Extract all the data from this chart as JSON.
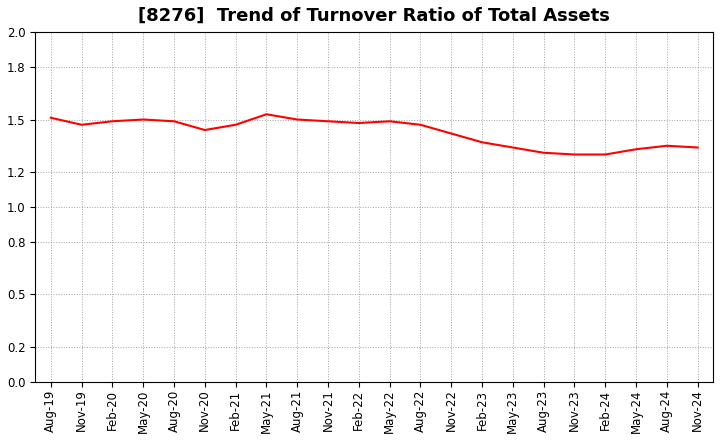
{
  "title": "[8276]  Trend of Turnover Ratio of Total Assets",
  "line_color": "#FF0000",
  "line_width": 1.5,
  "background_color": "#FFFFFF",
  "plot_bg_color": "#FFFFFF",
  "grid_color": "#999999",
  "ylim": [
    0.0,
    2.0
  ],
  "yticks": [
    0.0,
    0.2,
    0.5,
    0.8,
    1.0,
    1.2,
    1.5,
    1.8,
    2.0
  ],
  "x_labels": [
    "Aug-19",
    "Nov-19",
    "Feb-20",
    "May-20",
    "Aug-20",
    "Nov-20",
    "Feb-21",
    "May-21",
    "Aug-21",
    "Nov-21",
    "Feb-22",
    "May-22",
    "Aug-22",
    "Nov-22",
    "Feb-23",
    "May-23",
    "Aug-23",
    "Nov-23",
    "Feb-24",
    "May-24",
    "Aug-24",
    "Nov-24"
  ],
  "x_values": [
    0,
    1,
    2,
    3,
    4,
    5,
    6,
    7,
    8,
    9,
    10,
    11,
    12,
    13,
    14,
    15,
    16,
    17,
    18,
    19,
    20,
    21
  ],
  "y_values": [
    1.51,
    1.47,
    1.49,
    1.5,
    1.49,
    1.44,
    1.47,
    1.53,
    1.5,
    1.49,
    1.48,
    1.49,
    1.47,
    1.42,
    1.37,
    1.34,
    1.31,
    1.3,
    1.3,
    1.33,
    1.35,
    1.34
  ],
  "title_fontsize": 13,
  "tick_fontsize": 8.5
}
